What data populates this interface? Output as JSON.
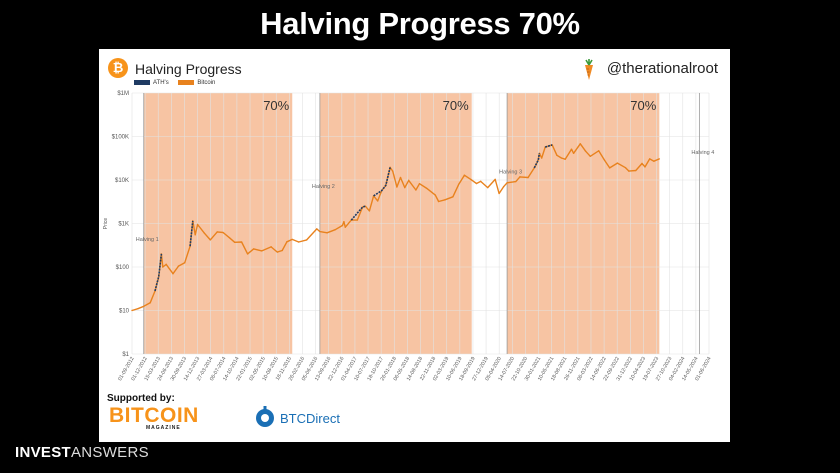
{
  "slide": {
    "title": "Halving Progress 70%",
    "footer_brand_bold": "INVEST",
    "footer_brand_light": "ANSWERS"
  },
  "header": {
    "chart_title": "Halving Progress",
    "handle": "@therationalroot",
    "logo_symbol": "₿"
  },
  "sponsors": {
    "label": "Supported by:",
    "bitcoin": "BITCOIN",
    "bitcoin_sub": "MAGAZINE",
    "btcdirect": "BTCDirect"
  },
  "colors": {
    "bitcoin": "#e8821e",
    "ath": "#1f3b63",
    "band": "#f7c4a3",
    "grid": "#e2e2e2"
  },
  "chart_data": {
    "type": "line",
    "title": "Halving Progress",
    "ylabel": "Price",
    "y_scale": "log",
    "ylim": [
      1,
      1000000
    ],
    "y_ticks": [
      {
        "v": 1,
        "label": "$1"
      },
      {
        "v": 10,
        "label": "$10"
      },
      {
        "v": 100,
        "label": "$100"
      },
      {
        "v": 1000,
        "label": "$1K"
      },
      {
        "v": 10000,
        "label": "$10K"
      },
      {
        "v": 100000,
        "label": "$100K"
      },
      {
        "v": 1000000,
        "label": "$1M"
      }
    ],
    "xlim": [
      "2012-09-01",
      "2024-07-01"
    ],
    "x_ticks": [
      "01-09-2012",
      "01-12-2012",
      "15-03-2013",
      "24-06-2013",
      "30-09-2013",
      "14-12-2013",
      "27-03-2014",
      "06-07-2014",
      "14-10-2014",
      "22-01-2015",
      "02-05-2015",
      "10-08-2015",
      "18-11-2015",
      "26-02-2016",
      "05-06-2016",
      "13-09-2016",
      "22-12-2016",
      "01-04-2017",
      "10-07-2017",
      "18-10-2017",
      "26-01-2018",
      "06-05-2018",
      "14-08-2018",
      "22-11-2018",
      "02-03-2019",
      "10-06-2019",
      "18-09-2019",
      "27-12-2019",
      "05-04-2020",
      "14-07-2020",
      "22-10-2020",
      "30-01-2021",
      "10-05-2021",
      "18-08-2021",
      "26-11-2021",
      "06-03-2022",
      "14-06-2022",
      "22-09-2022",
      "31-12-2022",
      "10-04-2023",
      "19-07-2023",
      "27-10-2023",
      "04-02-2024",
      "14-05-2024",
      "01-06-2024"
    ],
    "legend": [
      {
        "name": "ATH's",
        "color": "#1f3b63"
      },
      {
        "name": "Bitcoin",
        "color": "#e8821e"
      }
    ],
    "bands": [
      {
        "start": "2012-11-28",
        "end": "2015-12-15",
        "label": "70%"
      },
      {
        "start": "2016-07-09",
        "end": "2019-08-20",
        "label": "70%"
      },
      {
        "start": "2020-05-11",
        "end": "2023-06-25",
        "label": "70%"
      }
    ],
    "halvings": [
      {
        "date": "2012-11-28",
        "label": "Halving 1",
        "y": 400
      },
      {
        "date": "2016-07-09",
        "label": "Halving 2",
        "y": 6500
      },
      {
        "date": "2020-05-11",
        "label": "Halving 3",
        "y": 14000
      },
      {
        "date": "2024-04-20",
        "label": "Halving 4",
        "y": 40000
      }
    ],
    "series": [
      {
        "name": "Bitcoin",
        "points": [
          [
            "2012-09-01",
            10
          ],
          [
            "2012-10-15",
            11
          ],
          [
            "2012-11-28",
            12.5
          ],
          [
            "2013-01-15",
            15
          ],
          [
            "2013-02-20",
            28
          ],
          [
            "2013-03-20",
            60
          ],
          [
            "2013-04-09",
            200
          ],
          [
            "2013-04-20",
            100
          ],
          [
            "2013-05-15",
            115
          ],
          [
            "2013-07-05",
            70
          ],
          [
            "2013-08-15",
            105
          ],
          [
            "2013-10-01",
            125
          ],
          [
            "2013-11-10",
            300
          ],
          [
            "2013-11-30",
            1150
          ],
          [
            "2013-12-18",
            550
          ],
          [
            "2014-01-05",
            950
          ],
          [
            "2014-02-25",
            600
          ],
          [
            "2014-04-10",
            420
          ],
          [
            "2014-06-01",
            640
          ],
          [
            "2014-07-15",
            620
          ],
          [
            "2014-09-01",
            470
          ],
          [
            "2014-10-10",
            370
          ],
          [
            "2014-12-01",
            375
          ],
          [
            "2015-01-15",
            200
          ],
          [
            "2015-03-01",
            260
          ],
          [
            "2015-05-01",
            235
          ],
          [
            "2015-07-10",
            290
          ],
          [
            "2015-08-25",
            220
          ],
          [
            "2015-10-01",
            240
          ],
          [
            "2015-11-05",
            380
          ],
          [
            "2015-12-15",
            430
          ],
          [
            "2016-02-01",
            375
          ],
          [
            "2016-04-01",
            420
          ],
          [
            "2016-06-16",
            750
          ],
          [
            "2016-07-09",
            650
          ],
          [
            "2016-09-01",
            610
          ],
          [
            "2016-11-01",
            720
          ],
          [
            "2016-12-25",
            900
          ],
          [
            "2017-01-05",
            1100
          ],
          [
            "2017-01-15",
            820
          ],
          [
            "2017-03-01",
            1200
          ],
          [
            "2017-04-15",
            1200
          ],
          [
            "2017-05-25",
            2400
          ],
          [
            "2017-06-15",
            2500
          ],
          [
            "2017-07-15",
            1950
          ],
          [
            "2017-08-15",
            4300
          ],
          [
            "2017-09-15",
            3300
          ],
          [
            "2017-10-15",
            5700
          ],
          [
            "2017-11-15",
            7500
          ],
          [
            "2017-12-17",
            19500
          ],
          [
            "2018-01-05",
            16000
          ],
          [
            "2018-02-06",
            6900
          ],
          [
            "2018-03-05",
            11400
          ],
          [
            "2018-04-06",
            6700
          ],
          [
            "2018-05-05",
            9800
          ],
          [
            "2018-06-28",
            5900
          ],
          [
            "2018-07-25",
            8200
          ],
          [
            "2018-09-15",
            6500
          ],
          [
            "2018-11-20",
            4500
          ],
          [
            "2018-12-15",
            3200
          ],
          [
            "2019-02-01",
            3500
          ],
          [
            "2019-04-01",
            4100
          ],
          [
            "2019-05-15",
            8000
          ],
          [
            "2019-06-26",
            12900
          ],
          [
            "2019-08-15",
            10200
          ],
          [
            "2019-09-25",
            8300
          ],
          [
            "2019-10-26",
            9300
          ],
          [
            "2019-12-18",
            6700
          ],
          [
            "2020-02-12",
            10300
          ],
          [
            "2020-03-12",
            4900
          ],
          [
            "2020-04-15",
            7000
          ],
          [
            "2020-05-11",
            8600
          ],
          [
            "2020-07-15",
            9200
          ],
          [
            "2020-08-15",
            11800
          ],
          [
            "2020-10-15",
            11400
          ],
          [
            "2020-12-01",
            19000
          ],
          [
            "2020-12-31",
            29000
          ],
          [
            "2021-01-08",
            41000
          ],
          [
            "2021-01-25",
            32000
          ],
          [
            "2021-02-20",
            57000
          ],
          [
            "2021-04-14",
            64000
          ],
          [
            "2021-05-19",
            37000
          ],
          [
            "2021-06-22",
            32000
          ],
          [
            "2021-07-20",
            30000
          ],
          [
            "2021-09-05",
            51000
          ],
          [
            "2021-09-21",
            41000
          ],
          [
            "2021-11-10",
            68000
          ],
          [
            "2021-12-20",
            46000
          ],
          [
            "2022-01-24",
            35000
          ],
          [
            "2022-03-28",
            47000
          ],
          [
            "2022-05-12",
            28000
          ],
          [
            "2022-06-18",
            19000
          ],
          [
            "2022-08-15",
            24500
          ],
          [
            "2022-10-15",
            19200
          ],
          [
            "2022-11-09",
            16000
          ],
          [
            "2022-12-31",
            16500
          ],
          [
            "2023-02-15",
            24000
          ],
          [
            "2023-03-10",
            20000
          ],
          [
            "2023-04-14",
            30500
          ],
          [
            "2023-05-15",
            27000
          ],
          [
            "2023-06-25",
            30500
          ]
        ]
      },
      {
        "name": "ATH's",
        "segments": [
          [
            [
              "2013-02-20",
              28
            ],
            [
              "2013-03-20",
              60
            ],
            [
              "2013-04-09",
              200
            ]
          ],
          [
            [
              "2013-11-10",
              300
            ],
            [
              "2013-11-30",
              1150
            ]
          ],
          [
            [
              "2017-03-01",
              1200
            ],
            [
              "2017-05-25",
              2400
            ],
            [
              "2017-06-15",
              2500
            ]
          ],
          [
            [
              "2017-08-15",
              4300
            ],
            [
              "2017-10-15",
              5700
            ],
            [
              "2017-11-15",
              7500
            ],
            [
              "2017-12-17",
              19500
            ]
          ],
          [
            [
              "2020-12-01",
              19000
            ],
            [
              "2020-12-31",
              29000
            ],
            [
              "2021-01-08",
              41000
            ]
          ],
          [
            [
              "2021-02-20",
              57000
            ],
            [
              "2021-04-14",
              64000
            ]
          ]
        ]
      }
    ]
  }
}
